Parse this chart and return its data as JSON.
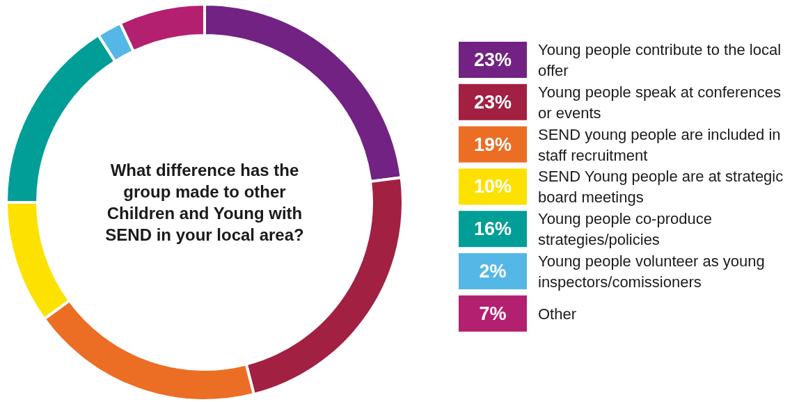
{
  "chart_data": {
    "type": "donut",
    "title": "What difference has the group made to other Children and Young with SEND in your local area?",
    "categories": [
      "Young people contribute to the local offer",
      "Young people speak at conferences or events",
      "SEND young people are included in staff recruitment",
      "SEND Young people are at strategic board meetings",
      "Young people co-produce strategies/policies",
      "Young people volunteer as young inspectors/comissioners",
      "Other"
    ],
    "values": [
      23,
      23,
      19,
      10,
      16,
      2,
      7
    ],
    "value_labels": [
      "23%",
      "23%",
      "19%",
      "10%",
      "16%",
      "2%",
      "7%"
    ],
    "colors": [
      "#722282",
      "#a22042",
      "#ec6e24",
      "#fde100",
      "#009e96",
      "#55b7e6",
      "#b3206f"
    ],
    "legend": "right"
  }
}
